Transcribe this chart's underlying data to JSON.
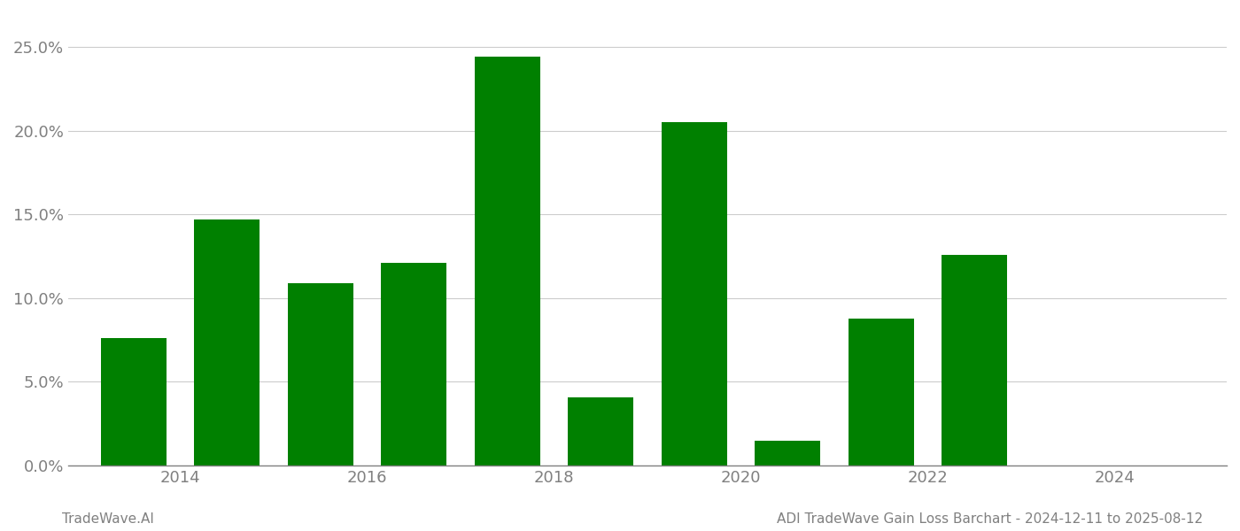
{
  "years": [
    2013.5,
    2014.5,
    2015.5,
    2016.5,
    2017.5,
    2018.5,
    2019.5,
    2020.5,
    2021.5,
    2022.5
  ],
  "values": [
    0.076,
    0.147,
    0.109,
    0.121,
    0.244,
    0.041,
    0.205,
    0.015,
    0.088,
    0.126
  ],
  "bar_color": "#008000",
  "background_color": "#ffffff",
  "grid_color": "#cccccc",
  "ylim": [
    0,
    0.27
  ],
  "yticks": [
    0.0,
    0.05,
    0.1,
    0.15,
    0.2,
    0.25
  ],
  "xlim": [
    2012.8,
    2025.2
  ],
  "xtick_years": [
    2014,
    2016,
    2018,
    2020,
    2022,
    2024
  ],
  "bar_width": 0.7,
  "footer_left": "TradeWave.AI",
  "footer_right": "ADI TradeWave Gain Loss Barchart - 2024-12-11 to 2025-08-12",
  "footer_color": "#808080",
  "footer_fontsize": 11,
  "tick_color": "#808080",
  "tick_fontsize": 13
}
